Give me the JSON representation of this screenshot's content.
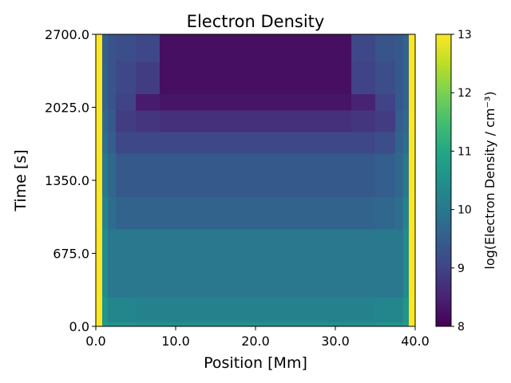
{
  "chart_data": {
    "type": "heatmap",
    "title": "Electron Density",
    "xlabel": "Position [Mm]",
    "ylabel": "Time [s]",
    "xlim": [
      0,
      40
    ],
    "ylim": [
      0,
      2700
    ],
    "xticks": [
      "0.0",
      "10.0",
      "20.0",
      "30.0",
      "40.0"
    ],
    "xtick_values": [
      0,
      10,
      20,
      30,
      40
    ],
    "yticks": [
      "0.0",
      "675.0",
      "1350.0",
      "2025.0",
      "2700.0"
    ],
    "ytick_values": [
      0,
      675,
      1350,
      2025,
      2700
    ],
    "colorbar": {
      "label": "log(Electron Density / cm⁻³)",
      "range": [
        8,
        13
      ],
      "ticks": [
        "8",
        "9",
        "10",
        "11",
        "12",
        "13"
      ],
      "tick_values": [
        8,
        9,
        10,
        11,
        12,
        13
      ],
      "colormap": "viridis"
    },
    "heatmap_samples": {
      "x_edges": [
        0,
        0.8,
        1.5,
        2.5,
        5,
        8,
        32,
        35,
        37.5,
        38.5,
        39.2,
        40
      ],
      "t_edges": [
        0,
        40,
        270,
        900,
        1200,
        1600,
        1800,
        2000,
        2150,
        2450,
        2700
      ],
      "values": [
        [
          13.0,
          10.8,
          10.6,
          10.6,
          10.5,
          10.5,
          10.5,
          10.6,
          10.6,
          10.8,
          13.0
        ],
        [
          13.0,
          10.6,
          10.3,
          10.3,
          10.2,
          10.2,
          10.2,
          10.3,
          10.3,
          10.6,
          13.0
        ],
        [
          13.0,
          10.4,
          10.0,
          10.0,
          10.0,
          10.0,
          10.0,
          10.0,
          10.0,
          10.4,
          13.0
        ],
        [
          13.0,
          10.2,
          9.8,
          9.6,
          9.6,
          9.6,
          9.6,
          9.7,
          9.8,
          10.2,
          13.0
        ],
        [
          13.0,
          10.0,
          9.7,
          9.4,
          9.4,
          9.4,
          9.4,
          9.5,
          9.7,
          10.0,
          13.0
        ],
        [
          13.0,
          9.8,
          9.5,
          9.1,
          9.1,
          9.1,
          9.1,
          9.2,
          9.6,
          9.8,
          13.0
        ],
        [
          13.0,
          9.7,
          9.4,
          8.9,
          8.8,
          8.7,
          8.8,
          8.9,
          9.5,
          9.7,
          13.0
        ],
        [
          13.0,
          9.6,
          9.3,
          9.0,
          8.4,
          8.3,
          8.5,
          9.0,
          9.4,
          9.6,
          13.0
        ],
        [
          13.0,
          9.6,
          9.3,
          9.1,
          8.9,
          8.2,
          9.0,
          9.2,
          9.4,
          9.6,
          13.0
        ],
        [
          13.0,
          9.5,
          9.3,
          9.2,
          9.1,
          8.2,
          9.1,
          9.3,
          9.4,
          9.6,
          13.0
        ]
      ]
    }
  }
}
